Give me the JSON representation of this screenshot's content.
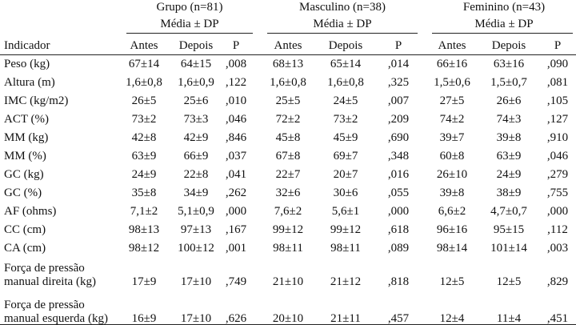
{
  "header": {
    "groups": [
      {
        "name": "Grupo (n=81)",
        "subheader": "Média ± DP"
      },
      {
        "name": "Masculino (n=38)",
        "subheader": "Média ± DP"
      },
      {
        "name": "Feminino (n=43)",
        "subheader": "Média ± DP"
      }
    ],
    "columns": [
      "Indicador",
      "Antes",
      "Depois",
      "P",
      "Antes",
      "Depois",
      "P",
      "Antes",
      "Depois",
      "P"
    ]
  },
  "table": {
    "rows": [
      {
        "label": [
          "Peso (kg)"
        ],
        "cells": [
          "67±14",
          "64±15",
          ",008",
          "68±13",
          "65±14",
          ",014",
          "66±16",
          "63±16",
          ",090"
        ]
      },
      {
        "label": [
          "Altura (m)"
        ],
        "cells": [
          "1,6±0,8",
          "1,6±0,9",
          ",122",
          "1,6±0,8",
          "1,6±0,8",
          ",325",
          "1,5±0,6",
          "1,5±0,7",
          ",081"
        ]
      },
      {
        "label": [
          "IMC (kg/m2)"
        ],
        "cells": [
          "26±5",
          "25±6",
          ",010",
          "25±5",
          "24±5",
          ",007",
          "27±5",
          "26±6",
          ",105"
        ]
      },
      {
        "label": [
          "ACT (%)"
        ],
        "cells": [
          "73±2",
          "73±3",
          ",046",
          "72±2",
          "73±2",
          ",209",
          "74±2",
          "74±3",
          ",127"
        ]
      },
      {
        "label": [
          "MM (kg)"
        ],
        "cells": [
          "42±8",
          "42±9",
          ",846",
          "45±8",
          "45±9",
          ",690",
          "39±7",
          "39±8",
          ",910"
        ]
      },
      {
        "label": [
          "MM (%)"
        ],
        "cells": [
          "63±9",
          "66±9",
          ",037",
          "67±8",
          "69±7",
          ",348",
          "60±8",
          "63±9",
          ",046"
        ]
      },
      {
        "label": [
          "GC (kg)"
        ],
        "cells": [
          "24±9",
          "22±8",
          ",041",
          "22±7",
          "20±7",
          ",016",
          "26±10",
          "24±9",
          ",279"
        ]
      },
      {
        "label": [
          "GC (%)"
        ],
        "cells": [
          "35±8",
          "34±9",
          ",262",
          "32±6",
          "30±6",
          ",055",
          "39±8",
          "38±9",
          ",755"
        ]
      },
      {
        "label": [
          "AF (ohms)"
        ],
        "cells": [
          "7,1±2",
          "5,1±0,9",
          ",000",
          "7,6±2",
          "5,6±1",
          ",000",
          "6,6±2",
          "4,7±0,7",
          ",000"
        ]
      },
      {
        "label": [
          "CC (cm)"
        ],
        "cells": [
          "98±13",
          "97±13",
          ",167",
          "99±12",
          "99±12",
          ",618",
          "96±16",
          "95±15",
          ",112"
        ]
      },
      {
        "label": [
          "CA (cm)"
        ],
        "cells": [
          "98±12",
          "100±12",
          ",001",
          "98±11",
          "98±11",
          ",089",
          "98±14",
          "101±14",
          ",003"
        ]
      },
      {
        "label": [
          "Força de pressão",
          "manual direita (kg)"
        ],
        "cells": [
          "17±9",
          "17±10",
          ",749",
          "21±10",
          "21±12",
          ",818",
          "12±5",
          "12±5",
          ",829"
        ]
      },
      {
        "label": [
          "Força de pressão",
          "manual esquerda (kg)"
        ],
        "cells": [
          "16±9",
          "17±10",
          ",626",
          "20±10",
          "21±11",
          ",457",
          "12±4",
          "11±4",
          ",451"
        ]
      }
    ]
  }
}
